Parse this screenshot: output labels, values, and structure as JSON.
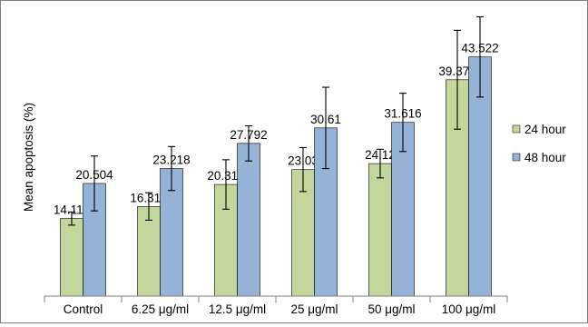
{
  "chart_data": {
    "type": "bar",
    "title": "",
    "xlabel": "",
    "ylabel": "Mean apoptosis (%)",
    "ylim": [
      0,
      50
    ],
    "grid": false,
    "legend_position": "right",
    "categories": [
      "Control",
      "6.25 μg/ml",
      "12.5 μg/ml",
      "25 μg/ml",
      "50 μg/ml",
      "100 μg/ml"
    ],
    "series": [
      {
        "name": "24 hour",
        "color": "#c3d69b",
        "values": [
          14.116,
          16.318,
          20.318,
          23.03,
          24.12,
          39.372
        ],
        "value_labels": [
          "14.116",
          "16.318",
          "20.318",
          "23.03",
          "24.12",
          "39.372"
        ],
        "error": [
          1.2,
          2.5,
          4.5,
          4.0,
          2.6,
          9.0
        ]
      },
      {
        "name": "48 hour",
        "color": "#95b3d7",
        "values": [
          20.504,
          23.218,
          27.792,
          30.61,
          31.616,
          43.522
        ],
        "value_labels": [
          "20.504",
          "23.218",
          "27.792",
          "30.61",
          "31.616",
          "43.522"
        ],
        "error": [
          5.0,
          4.0,
          3.2,
          7.4,
          5.3,
          7.3
        ]
      }
    ]
  }
}
